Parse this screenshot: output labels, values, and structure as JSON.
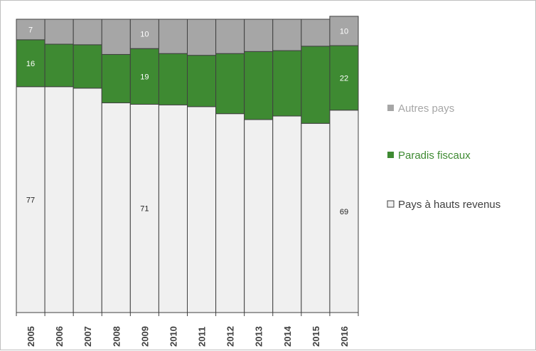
{
  "chart_data": {
    "type": "bar",
    "stacked": true,
    "normalized_to": 100,
    "categories": [
      "2005",
      "2006",
      "2007",
      "2008",
      "2009",
      "2010",
      "2011",
      "2012",
      "2013",
      "2014",
      "2015",
      "2016"
    ],
    "ylim": [
      0,
      100
    ],
    "series": [
      {
        "name": "Pays à hauts revenus",
        "color": "#f0f0f0",
        "values": [
          77,
          77,
          76.5,
          71.5,
          71,
          70.8,
          70.2,
          67.8,
          65.8,
          67,
          64.5,
          69
        ]
      },
      {
        "name": "Paradis fiscaux",
        "color": "#3e8a32",
        "values": [
          16,
          14.5,
          14.8,
          16.5,
          19,
          17.5,
          17.5,
          20.5,
          23.2,
          22.3,
          26.3,
          22
        ]
      },
      {
        "name": "Autres pays",
        "color": "#a6a6a6",
        "values": [
          7,
          8.5,
          8.7,
          12,
          10,
          11.7,
          12.3,
          11.7,
          11,
          10.7,
          9.2,
          10
        ]
      }
    ],
    "data_labels": [
      {
        "series": 0,
        "index": 0,
        "text": "77"
      },
      {
        "series": 0,
        "index": 4,
        "text": "71"
      },
      {
        "series": 0,
        "index": 11,
        "text": "69"
      },
      {
        "series": 1,
        "index": 0,
        "text": "16"
      },
      {
        "series": 1,
        "index": 4,
        "text": "19"
      },
      {
        "series": 1,
        "index": 11,
        "text": "22"
      },
      {
        "series": 2,
        "index": 0,
        "text": "7"
      },
      {
        "series": 2,
        "index": 4,
        "text": "10"
      },
      {
        "series": 2,
        "index": 11,
        "text": "10"
      }
    ],
    "legend": {
      "placement": "right",
      "order": [
        2,
        1,
        0
      ],
      "entries": [
        "Autres pays",
        "Paradis fiscaux",
        "Pays à hauts revenus"
      ],
      "colors": [
        "#a6a6a6",
        "#3e8a32",
        "#404040"
      ]
    },
    "label_colors": {
      "on_light": "#222222",
      "on_dark": "#ffffff"
    },
    "grid": false
  }
}
